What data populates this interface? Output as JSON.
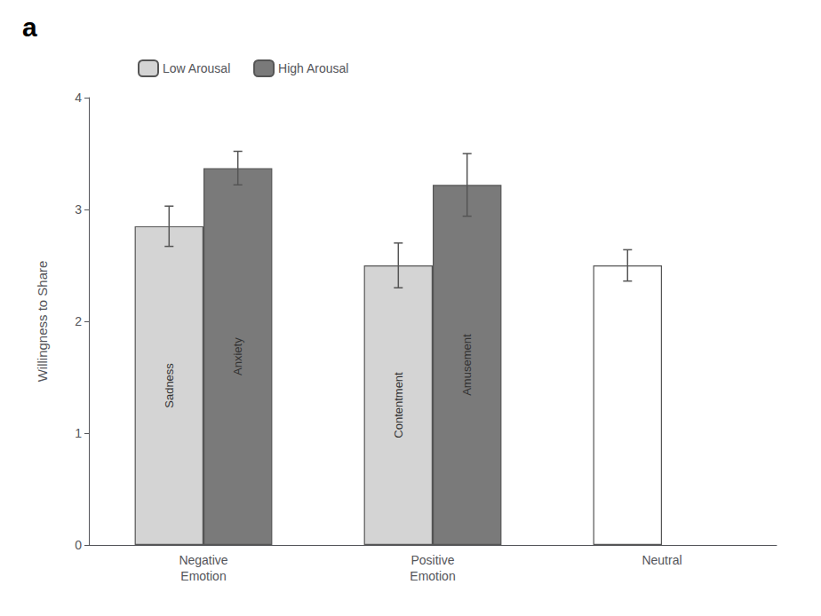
{
  "chart_data": {
    "type": "bar",
    "title": "a",
    "categories": [
      "Negative\nEmotion",
      "Positive\nEmotion",
      "Neutral"
    ],
    "series": [
      {
        "name": "Low Arousal",
        "color": "#d4d4d4",
        "colors": [
          "#d4d4d4",
          "#d4d4d4",
          "#ffffff"
        ],
        "values": [
          2.85,
          2.5,
          2.5
        ],
        "errors": [
          0.18,
          0.2,
          0.14
        ],
        "labels": [
          "Sadness",
          "Contentment",
          null
        ]
      },
      {
        "name": "High Arousal",
        "color": "#7a7a7a",
        "colors": [
          "#7a7a7a",
          "#7a7a7a",
          null
        ],
        "values": [
          3.37,
          3.22,
          null
        ],
        "errors": [
          0.15,
          0.28,
          null
        ],
        "labels": [
          "Anxiety",
          "Amusement",
          null
        ]
      }
    ],
    "edge_color": "#555555",
    "ylabel": "Willingness to Share",
    "ylim": [
      0,
      4
    ],
    "yticks": [
      0,
      1,
      2,
      3,
      4
    ],
    "grid": false,
    "legend": "upper left"
  }
}
